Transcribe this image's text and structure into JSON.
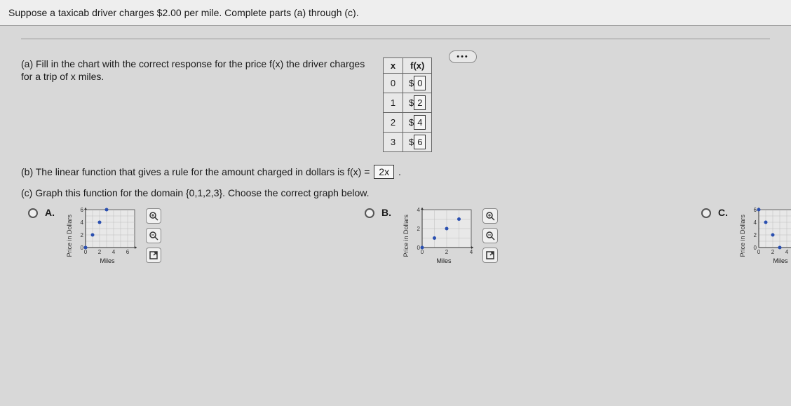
{
  "header": {
    "text": "Suppose a taxicab driver charges $2.00 per mile. Complete parts (a) through (c)."
  },
  "part_a": {
    "prompt": "(a) Fill in the chart with the correct response for the price f(x) the driver charges for a trip of x miles.",
    "table": {
      "col1_header": "x",
      "col2_header": "f(x)",
      "rows": [
        {
          "x": "0",
          "prefix": "$",
          "val": "0"
        },
        {
          "x": "1",
          "prefix": "$",
          "val": "2"
        },
        {
          "x": "2",
          "prefix": "$",
          "val": "4"
        },
        {
          "x": "3",
          "prefix": "$",
          "val": "6"
        }
      ]
    }
  },
  "part_b": {
    "prefix": "(b) The linear function that gives a rule for the amount charged in dollars is f(x) = ",
    "answer": "2x",
    "suffix": " ."
  },
  "part_c": {
    "text": "(c) Graph this function for the domain {0,1,2,3}. Choose the correct graph below."
  },
  "options": {
    "a_label": "A.",
    "b_label": "B.",
    "c_label": "C."
  },
  "chart": {
    "width": 90,
    "height": 70,
    "ylabel": "Price in Dollars",
    "xlabel": "Miles",
    "bg": "#e8e8e8",
    "grid": "#bdbdbd",
    "axis": "#333333",
    "point_color": "#2a4fb0",
    "point_r": 2.5,
    "xticks": [
      "0",
      "2",
      "4",
      "6"
    ],
    "yticks": [
      "0",
      "2",
      "4",
      "6"
    ],
    "tick_font": 8,
    "a": {
      "ymax": 6,
      "xmax": 7,
      "points": [
        [
          0,
          0
        ],
        [
          1,
          2
        ],
        [
          2,
          4
        ],
        [
          3,
          6
        ]
      ]
    },
    "b": {
      "ymax": 4,
      "xmax": 4,
      "points": [
        [
          0,
          0
        ],
        [
          1,
          1
        ],
        [
          2,
          2
        ],
        [
          3,
          3
        ]
      ],
      "xticks": [
        "0",
        "2",
        "4"
      ],
      "yticks": [
        "0",
        "2",
        "4"
      ]
    },
    "c": {
      "ymax": 6,
      "xmax": 7,
      "points": [
        [
          0,
          6
        ],
        [
          1,
          4
        ],
        [
          2,
          2
        ],
        [
          3,
          0
        ]
      ]
    }
  },
  "tools": {
    "zoom_in": "🔍",
    "zoom_out": "🔍",
    "expand": "⛶"
  },
  "ellipsis": "•••"
}
